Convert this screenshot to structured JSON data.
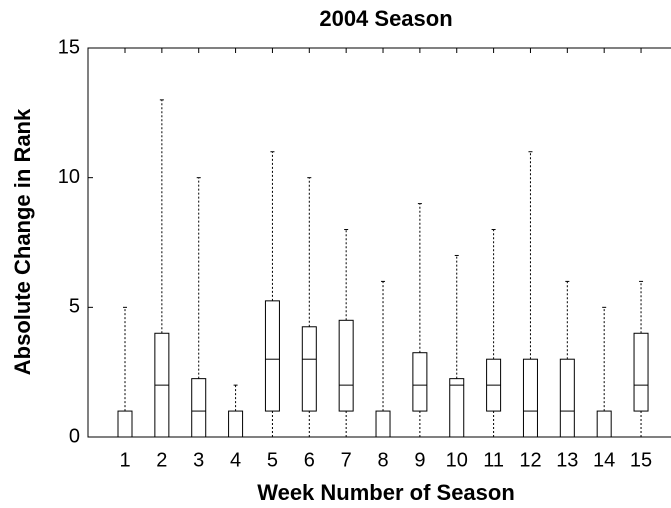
{
  "chart_data": {
    "type": "box",
    "title": "2004 Season",
    "x_label": "Week Number of Season",
    "y_label": "Absolute Change in Rank",
    "categories": [
      "1",
      "2",
      "3",
      "4",
      "5",
      "6",
      "7",
      "8",
      "9",
      "10",
      "11",
      "12",
      "13",
      "14",
      "15"
    ],
    "whisker_low": [
      0,
      0,
      0,
      0,
      0,
      0,
      0,
      0,
      0,
      0,
      0,
      0,
      0,
      0,
      0
    ],
    "q1": [
      0,
      0,
      0,
      0,
      1,
      1,
      1,
      0,
      1,
      0,
      1,
      0,
      0,
      0,
      1
    ],
    "median": [
      0,
      2,
      1,
      0,
      3,
      3,
      2,
      0,
      2,
      2,
      2,
      1,
      1,
      0,
      2
    ],
    "q3": [
      1,
      4,
      2.25,
      1,
      5.25,
      4.25,
      4.5,
      1,
      3.25,
      2.25,
      3,
      3,
      3,
      1,
      4
    ],
    "whisker_high": [
      5,
      13,
      10,
      2,
      11,
      10,
      8,
      6,
      9,
      7,
      8,
      11,
      6,
      5,
      6
    ],
    "color": "#000000",
    "ylim": [
      0,
      15
    ],
    "yticks": [
      0,
      5,
      10,
      15
    ]
  }
}
